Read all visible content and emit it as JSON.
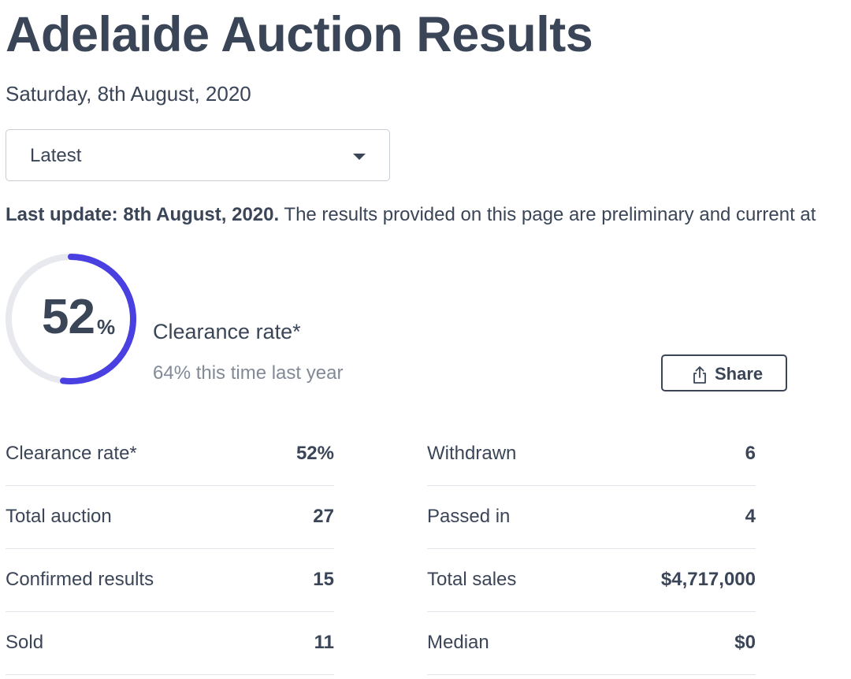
{
  "header": {
    "title": "Adelaide Auction Results",
    "date": "Saturday, 8th August, 2020"
  },
  "selector": {
    "value": "Latest"
  },
  "update": {
    "bold": "Last update: 8th August, 2020.",
    "text": " The results provided on this page are preliminary and current at"
  },
  "clearance": {
    "value": "52",
    "unit": "%",
    "fraction": 0.52,
    "label": "Clearance rate*",
    "compare": "64% this time last year",
    "ring_color": "#4a3fe0",
    "track_color": "#e7e9ee"
  },
  "share": {
    "label": "Share"
  },
  "stats": {
    "left": [
      {
        "label": "Clearance rate*",
        "value": "52%"
      },
      {
        "label": "Total auction",
        "value": "27"
      },
      {
        "label": "Confirmed results",
        "value": "15"
      },
      {
        "label": "Sold",
        "value": "11"
      }
    ],
    "right": [
      {
        "label": "Withdrawn",
        "value": "6"
      },
      {
        "label": "Passed in",
        "value": "4"
      },
      {
        "label": "Total sales",
        "value": "$4,717,000"
      },
      {
        "label": "Median",
        "value": "$0"
      }
    ]
  }
}
